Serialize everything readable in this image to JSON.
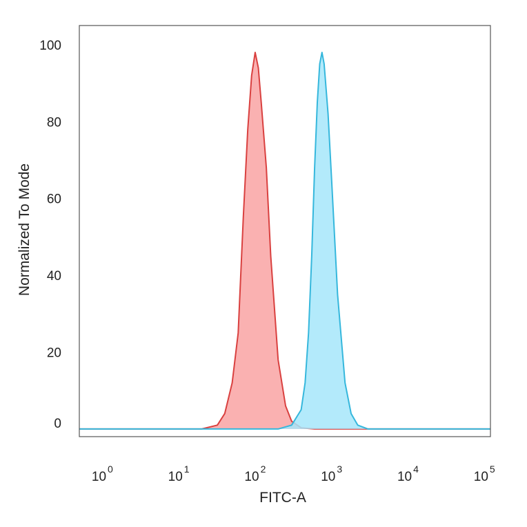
{
  "chart_data": {
    "type": "area",
    "title": "",
    "xlabel": "FITC-A",
    "ylabel": "Normalized To Mode",
    "xscale": "log",
    "xlim": [
      0.5,
      120000
    ],
    "ylim": [
      -2,
      105
    ],
    "yticks": [
      0,
      20,
      40,
      60,
      80,
      100
    ],
    "xticks": [
      {
        "base": "10",
        "exp": "0",
        "value": 1
      },
      {
        "base": "10",
        "exp": "1",
        "value": 10
      },
      {
        "base": "10",
        "exp": "2",
        "value": 100
      },
      {
        "base": "10",
        "exp": "3",
        "value": 1000
      },
      {
        "base": "10",
        "exp": "4",
        "value": 10000
      },
      {
        "base": "10",
        "exp": "5",
        "value": 100000
      }
    ],
    "grid": false,
    "series": [
      {
        "stroke": "#d9403f",
        "fill": "#f9a3a3",
        "x": [
          0.5,
          20,
          32,
          40,
          50,
          60,
          70,
          80,
          90,
          100,
          110,
          120,
          140,
          160,
          200,
          250,
          300,
          400,
          600,
          1000,
          120000
        ],
        "y": [
          0,
          0,
          1,
          4,
          12,
          25,
          55,
          78,
          92,
          98,
          94,
          85,
          68,
          45,
          18,
          6,
          2,
          0.3,
          0,
          0,
          0
        ]
      },
      {
        "stroke": "#35b7dc",
        "fill": "#a6e6fa",
        "x": [
          0.5,
          200,
          300,
          400,
          450,
          500,
          550,
          600,
          650,
          700,
          750,
          800,
          900,
          1000,
          1200,
          1500,
          1800,
          2200,
          3000,
          120000
        ],
        "y": [
          0,
          0,
          1,
          5,
          12,
          25,
          45,
          68,
          85,
          95,
          98,
          95,
          82,
          65,
          35,
          12,
          4,
          1,
          0,
          0
        ]
      }
    ]
  }
}
